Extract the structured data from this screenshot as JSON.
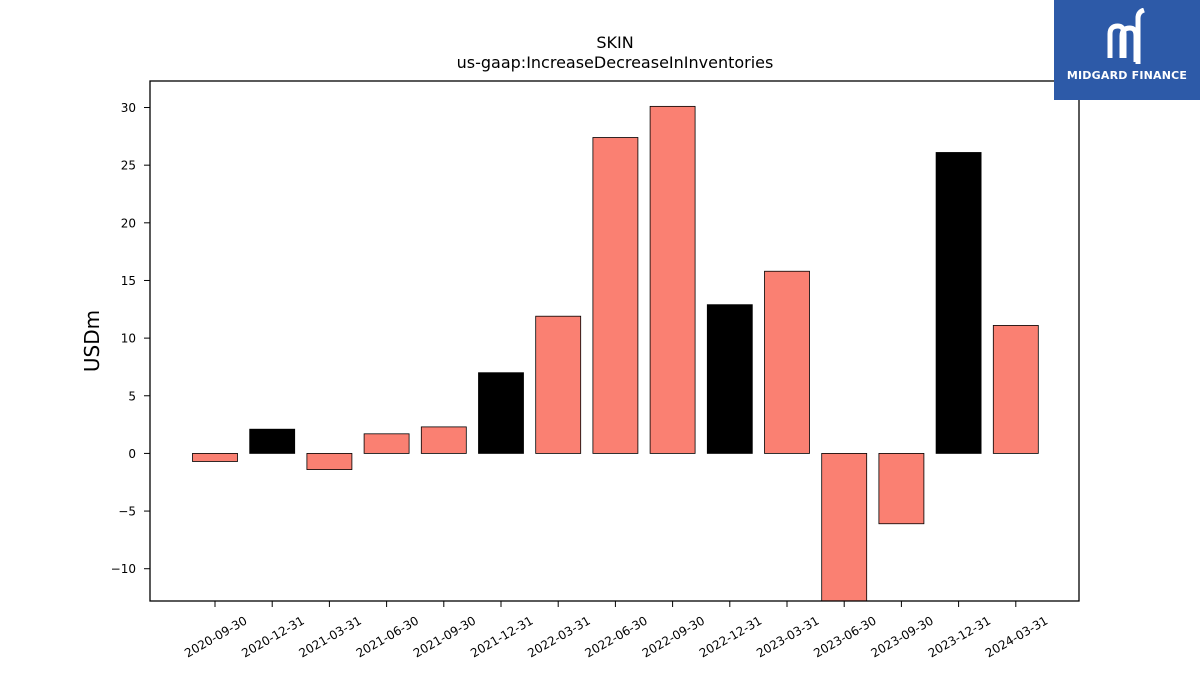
{
  "chart_data": {
    "type": "bar",
    "title": "SKIN",
    "subtitle": "us-gaap:IncreaseDecreaseInInventories",
    "xlabel": "",
    "ylabel": "USDm",
    "categories": [
      "2020-09-30",
      "2020-12-31",
      "2021-03-31",
      "2021-06-30",
      "2021-09-30",
      "2021-12-31",
      "2022-03-31",
      "2022-06-30",
      "2022-09-30",
      "2022-12-31",
      "2023-03-31",
      "2023-06-30",
      "2023-09-30",
      "2023-12-31",
      "2024-03-31"
    ],
    "values": [
      -0.7,
      2.1,
      -1.4,
      1.7,
      2.3,
      7.0,
      11.9,
      27.4,
      30.1,
      12.9,
      15.8,
      -12.8,
      -6.1,
      26.1,
      11.1
    ],
    "bar_colors": [
      "#fa8072",
      "#000000",
      "#fa8072",
      "#fa8072",
      "#fa8072",
      "#000000",
      "#fa8072",
      "#fa8072",
      "#fa8072",
      "#000000",
      "#fa8072",
      "#fa8072",
      "#fa8072",
      "#000000",
      "#fa8072"
    ],
    "ylim": [
      -12.8,
      32.3
    ],
    "yticks": [
      -10,
      -5,
      0,
      5,
      10,
      15,
      20,
      25,
      30
    ],
    "ytick_labels": [
      "−10",
      "−5",
      "0",
      "5",
      "10",
      "15",
      "20",
      "25",
      "30"
    ],
    "grid": false,
    "legend": "none"
  },
  "logo": {
    "text": "MIDGARD FINANCE"
  }
}
